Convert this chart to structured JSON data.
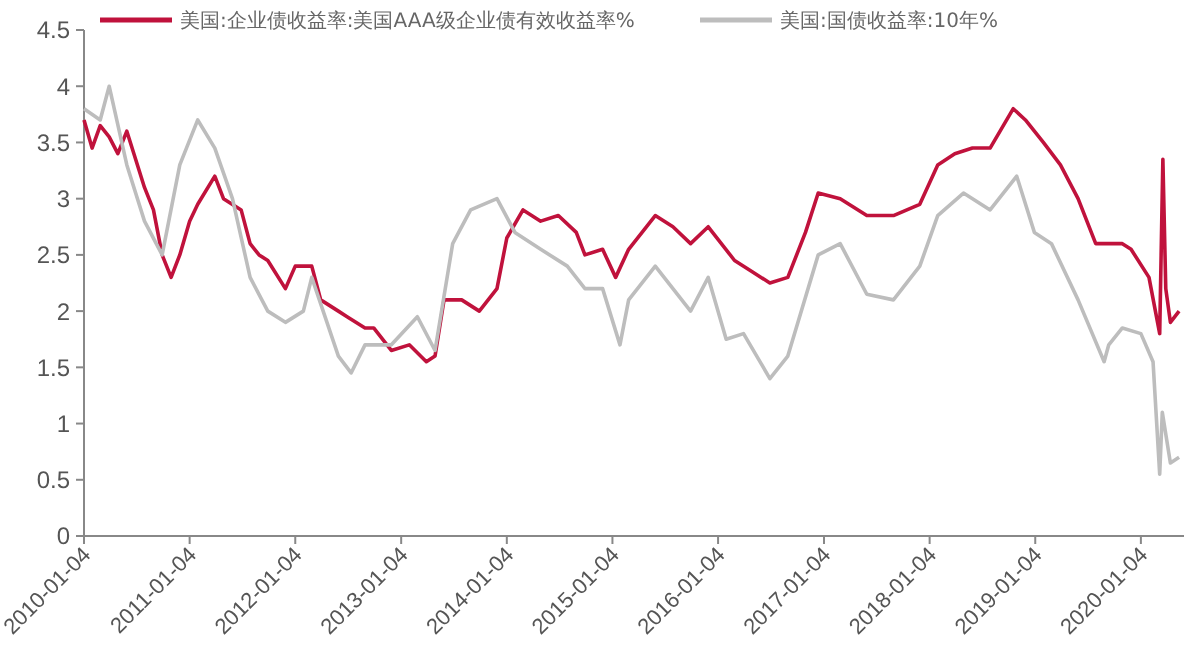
{
  "chart_data": {
    "type": "line",
    "legend": "top",
    "grid": false,
    "xlim": [
      "2010-01-04",
      "2020-06-01"
    ],
    "xticks": [
      "2010-01-04",
      "2011-01-04",
      "2012-01-04",
      "2013-01-04",
      "2014-01-04",
      "2015-01-04",
      "2016-01-04",
      "2017-01-04",
      "2018-01-04",
      "2019-01-04",
      "2020-01-04"
    ],
    "ylim": [
      0,
      4.5
    ],
    "yticks": [
      0,
      0.5,
      1,
      1.5,
      2,
      2.5,
      3,
      3.5,
      4,
      4.5
    ],
    "series": [
      {
        "name": "美国:企业债收益率:美国AAA级企业债有效收益率%",
        "color": "#c0123c",
        "x": [
          "2010-01-04",
          "2010-02-01",
          "2010-03-01",
          "2010-04-01",
          "2010-05-01",
          "2010-06-01",
          "2010-08-01",
          "2010-09-01",
          "2010-10-01",
          "2010-11-01",
          "2010-12-01",
          "2011-01-04",
          "2011-02-01",
          "2011-04-01",
          "2011-05-01",
          "2011-07-01",
          "2011-08-01",
          "2011-09-01",
          "2011-10-01",
          "2011-12-01",
          "2012-01-04",
          "2012-03-01",
          "2012-04-01",
          "2012-06-01",
          "2012-07-01",
          "2012-09-01",
          "2012-10-01",
          "2012-12-01",
          "2013-02-01",
          "2013-04-01",
          "2013-05-01",
          "2013-06-01",
          "2013-08-01",
          "2013-10-01",
          "2013-12-01",
          "2014-01-04",
          "2014-03-01",
          "2014-05-01",
          "2014-07-01",
          "2014-09-01",
          "2014-10-01",
          "2014-12-01",
          "2015-01-15",
          "2015-03-01",
          "2015-06-01",
          "2015-08-01",
          "2015-10-01",
          "2015-12-01",
          "2016-03-01",
          "2016-05-01",
          "2016-07-01",
          "2016-09-01",
          "2016-11-01",
          "2016-12-15",
          "2017-03-01",
          "2017-06-01",
          "2017-09-01",
          "2017-12-01",
          "2018-02-01",
          "2018-04-01",
          "2018-06-01",
          "2018-08-01",
          "2018-10-20",
          "2018-12-01",
          "2019-02-01",
          "2019-04-01",
          "2019-06-01",
          "2019-08-01",
          "2019-09-01",
          "2019-11-01",
          "2019-12-01",
          "2020-02-01",
          "2020-03-09",
          "2020-03-20",
          "2020-03-30",
          "2020-04-15",
          "2020-05-15"
        ],
        "values": [
          3.7,
          3.45,
          3.65,
          3.55,
          3.4,
          3.6,
          3.1,
          2.9,
          2.5,
          2.3,
          2.5,
          2.8,
          2.95,
          3.2,
          3.0,
          2.9,
          2.6,
          2.5,
          2.45,
          2.2,
          2.4,
          2.4,
          2.1,
          2.0,
          1.95,
          1.85,
          1.85,
          1.65,
          1.7,
          1.55,
          1.6,
          2.1,
          2.1,
          2.0,
          2.2,
          2.65,
          2.9,
          2.8,
          2.85,
          2.7,
          2.5,
          2.55,
          2.3,
          2.55,
          2.85,
          2.75,
          2.6,
          2.75,
          2.45,
          2.35,
          2.25,
          2.3,
          2.7,
          3.05,
          3.0,
          2.85,
          2.85,
          2.95,
          3.3,
          3.4,
          3.45,
          3.45,
          3.8,
          3.7,
          3.5,
          3.3,
          3.0,
          2.6,
          2.6,
          2.6,
          2.55,
          2.3,
          1.8,
          3.35,
          2.2,
          1.9,
          2.0
        ]
      },
      {
        "name": "美国:国债收益率:10年%",
        "color": "#bdbdbd",
        "x": [
          "2010-01-04",
          "2010-03-01",
          "2010-04-01",
          "2010-06-01",
          "2010-08-01",
          "2010-10-01",
          "2010-12-01",
          "2011-02-01",
          "2011-04-01",
          "2011-06-01",
          "2011-08-01",
          "2011-10-01",
          "2011-12-01",
          "2012-02-01",
          "2012-03-01",
          "2012-06-01",
          "2012-07-15",
          "2012-09-01",
          "2012-12-01",
          "2013-03-01",
          "2013-05-01",
          "2013-07-01",
          "2013-09-01",
          "2013-12-01",
          "2014-02-01",
          "2014-05-01",
          "2014-08-01",
          "2014-10-01",
          "2014-12-01",
          "2015-01-30",
          "2015-03-01",
          "2015-06-01",
          "2015-08-01",
          "2015-10-01",
          "2015-12-01",
          "2016-02-01",
          "2016-04-01",
          "2016-07-01",
          "2016-09-01",
          "2016-12-15",
          "2017-03-01",
          "2017-06-01",
          "2017-09-01",
          "2017-12-01",
          "2018-02-01",
          "2018-05-01",
          "2018-08-01",
          "2018-11-01",
          "2019-01-01",
          "2019-03-01",
          "2019-06-01",
          "2019-08-30",
          "2019-09-15",
          "2019-11-01",
          "2020-01-04",
          "2020-02-15",
          "2020-03-09",
          "2020-03-18",
          "2020-04-15",
          "2020-05-15"
        ],
        "values": [
          3.8,
          3.7,
          4.0,
          3.3,
          2.8,
          2.5,
          3.3,
          3.7,
          3.45,
          3.0,
          2.3,
          2.0,
          1.9,
          2.0,
          2.3,
          1.6,
          1.45,
          1.7,
          1.7,
          1.95,
          1.65,
          2.6,
          2.9,
          3.0,
          2.7,
          2.55,
          2.4,
          2.2,
          2.2,
          1.7,
          2.1,
          2.4,
          2.2,
          2.0,
          2.3,
          1.75,
          1.8,
          1.4,
          1.6,
          2.5,
          2.6,
          2.15,
          2.1,
          2.4,
          2.85,
          3.05,
          2.9,
          3.2,
          2.7,
          2.6,
          2.1,
          1.55,
          1.7,
          1.85,
          1.8,
          1.55,
          0.55,
          1.1,
          0.65,
          0.7
        ]
      }
    ]
  }
}
